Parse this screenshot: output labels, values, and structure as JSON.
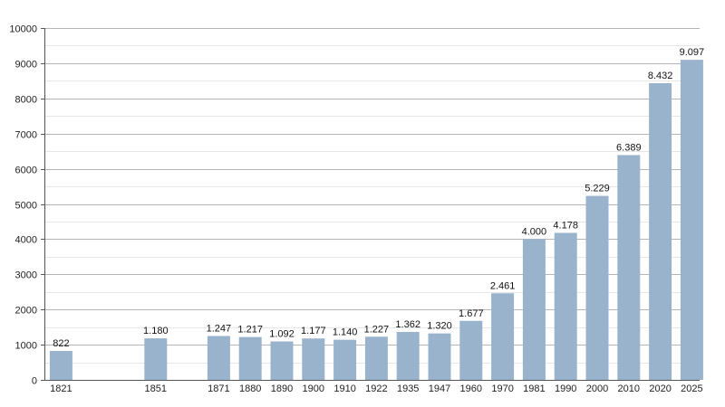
{
  "chart_data": {
    "type": "bar",
    "title": "",
    "xlabel": "",
    "ylabel": "",
    "ylim": [
      0,
      10000
    ],
    "yticks": [
      0,
      1000,
      2000,
      3000,
      4000,
      5000,
      6000,
      7000,
      8000,
      9000,
      10000
    ],
    "grid": true,
    "legend": "none",
    "bar_color": "#9ab3cc",
    "categories": [
      "1821",
      "1851",
      "1871",
      "1880",
      "1890",
      "1900",
      "1910",
      "1922",
      "1935",
      "1947",
      "1960",
      "1970",
      "1981",
      "1990",
      "2000",
      "2010",
      "2020",
      "2025"
    ],
    "slots": [
      0,
      3,
      5,
      6,
      7,
      8,
      9,
      10,
      11,
      12,
      13,
      14,
      15,
      16,
      17,
      18,
      19,
      20
    ],
    "values": [
      822,
      1180,
      1247,
      1217,
      1092,
      1177,
      1140,
      1227,
      1362,
      1320,
      1677,
      2461,
      4000,
      4178,
      5229,
      6389,
      8432,
      9097
    ],
    "value_labels": [
      "822",
      "1.180",
      "1.247",
      "1.217",
      "1.092",
      "1.177",
      "1.140",
      "1.227",
      "1.362",
      "1.320",
      "1.677",
      "2.461",
      "4.000",
      "4.178",
      "5.229",
      "6.389",
      "8.432",
      "9.097"
    ]
  }
}
